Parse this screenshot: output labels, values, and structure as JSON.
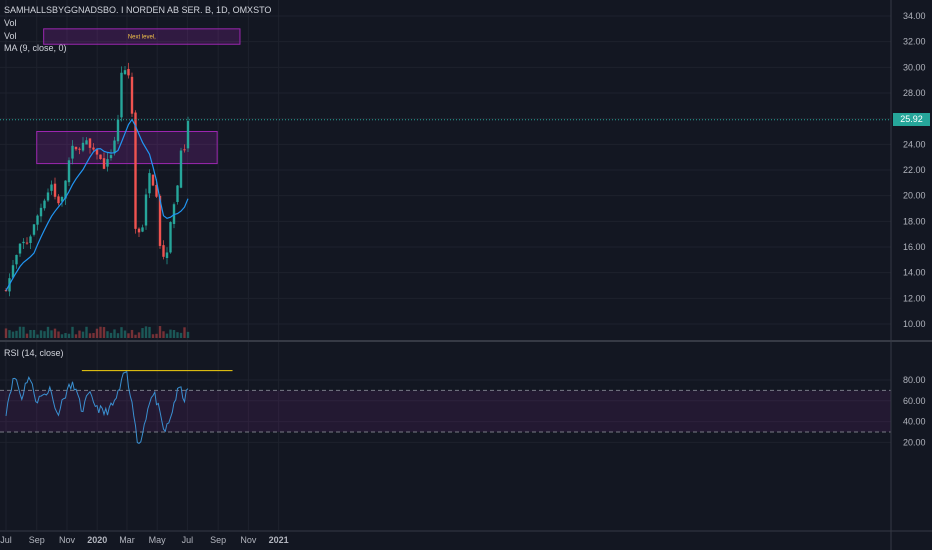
{
  "legend": {
    "symbol": "SAMHALLSBYGGNADSBO. I NORDEN AB SER. B, 1D, OMXSTO",
    "vol1": "Vol",
    "vol2": "Vol",
    "ma": "MA (9, close, 0)",
    "rsi": "RSI (14, close)"
  },
  "annotation": {
    "box_label": "Next level,"
  },
  "last_price": {
    "value": "25.92",
    "bg": "#26a69a"
  },
  "colors": {
    "background": "#131722",
    "up": "#26a69a",
    "down": "#ef5350",
    "ma": "#2196f3",
    "rsi": "#3a8fd0",
    "rect": "#9c27b0",
    "annotation_line": "#f6d20f"
  },
  "chart_data": [
    {
      "type": "candlestick",
      "title": "SAMHALLSBYGGNADSBO. I NORDEN AB SER. B, 1D, OMXSTO",
      "x_tick_labels": [
        "Jul",
        "Sep",
        "Nov",
        "2020",
        "Mar",
        "May",
        "Jul",
        "Sep",
        "Nov",
        "2021"
      ],
      "y_tick_labels": [
        "10.00",
        "12.00",
        "14.00",
        "16.00",
        "18.00",
        "20.00",
        "22.00",
        "24.00",
        "26.00",
        "28.00",
        "30.00",
        "32.00",
        "34.00"
      ],
      "ylim": [
        9.0,
        34.5
      ],
      "last_close": 25.92,
      "close_path": [
        [
          "2019-07-01",
          12.6
        ],
        [
          "2019-07-15",
          14.5
        ],
        [
          "2019-07-31",
          16.3
        ],
        [
          "2019-08-15",
          16.4
        ],
        [
          "2019-09-01",
          18.3
        ],
        [
          "2019-09-15",
          19.6
        ],
        [
          "2019-10-01",
          20.9
        ],
        [
          "2019-10-10",
          19.6
        ],
        [
          "2019-10-20",
          19.4
        ],
        [
          "2019-11-01",
          21.8
        ],
        [
          "2019-11-10",
          23.8
        ],
        [
          "2019-11-20",
          23.5
        ],
        [
          "2019-12-01",
          24.0
        ],
        [
          "2019-12-10",
          24.2
        ],
        [
          "2019-12-20",
          23.5
        ],
        [
          "2020-01-01",
          23.3
        ],
        [
          "2020-01-15",
          22.2
        ],
        [
          "2020-02-01",
          23.5
        ],
        [
          "2020-02-15",
          26.5
        ],
        [
          "2020-02-22",
          32.0
        ],
        [
          "2020-02-28",
          28.5
        ],
        [
          "2020-03-05",
          29.5
        ],
        [
          "2020-03-12",
          26.0
        ],
        [
          "2020-03-20",
          15.0
        ],
        [
          "2020-03-25",
          17.2
        ],
        [
          "2020-04-01",
          17.5
        ],
        [
          "2020-04-10",
          20.5
        ],
        [
          "2020-04-15",
          22.0
        ],
        [
          "2020-04-22",
          21.0
        ],
        [
          "2020-04-29",
          20.5
        ],
        [
          "2020-05-05",
          16.5
        ],
        [
          "2020-05-12",
          15.2
        ],
        [
          "2020-05-20",
          15.5
        ],
        [
          "2020-06-01",
          19.0
        ],
        [
          "2020-06-10",
          20.4
        ],
        [
          "2020-06-20",
          24.5
        ],
        [
          "2020-06-25",
          23.4
        ],
        [
          "2020-07-03",
          25.92
        ]
      ],
      "shapes": [
        {
          "kind": "rectangle",
          "x": [
            "2019-09-01",
            "2020-08-30"
          ],
          "y": [
            22.5,
            25.0
          ]
        },
        {
          "kind": "rectangle",
          "x": [
            "2019-09-15",
            "2020-10-15"
          ],
          "y": [
            31.8,
            33.0
          ],
          "label": "Next level,"
        }
      ],
      "series": [
        {
          "name": "Vol"
        },
        {
          "name": "MA (9, close, 0)"
        }
      ]
    },
    {
      "type": "line",
      "title": "RSI (14, close)",
      "y_tick_labels": [
        "20.00",
        "40.00",
        "60.00",
        "80.00"
      ],
      "ylim": [
        14,
        95
      ],
      "bands": [
        30,
        70
      ],
      "horizontal_line": {
        "x": [
          "2019-12-01",
          "2020-09-30"
        ],
        "y": 89
      },
      "x": [
        "2019-07-01",
        "2019-07-10",
        "2019-07-20",
        "2019-08-01",
        "2019-08-15",
        "2019-09-01",
        "2019-09-15",
        "2019-10-01",
        "2019-10-10",
        "2019-10-20",
        "2019-11-01",
        "2019-11-15",
        "2019-12-01",
        "2019-12-15",
        "2020-01-01",
        "2020-01-15",
        "2020-02-01",
        "2020-02-10",
        "2020-02-20",
        "2020-02-28",
        "2020-03-05",
        "2020-03-12",
        "2020-03-20",
        "2020-03-28",
        "2020-04-05",
        "2020-04-15",
        "2020-04-25",
        "2020-05-01",
        "2020-05-08",
        "2020-05-15",
        "2020-05-25",
        "2020-06-05",
        "2020-06-15",
        "2020-06-25",
        "2020-07-03"
      ],
      "values": [
        50,
        72,
        84,
        62,
        85,
        60,
        66,
        72,
        46,
        55,
        70,
        76,
        50,
        66,
        54,
        48,
        55,
        64,
        78,
        91,
        70,
        62,
        25,
        18,
        38,
        60,
        66,
        58,
        42,
        30,
        38,
        60,
        73,
        62,
        71
      ]
    }
  ]
}
